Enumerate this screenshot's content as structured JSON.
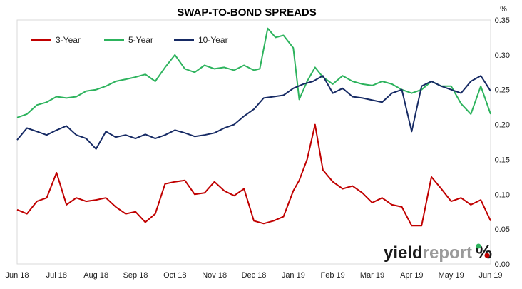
{
  "chart_data": {
    "type": "line",
    "title": "SWAP-TO-BOND SPREADS",
    "y_unit": "%",
    "ylim": [
      0,
      0.35
    ],
    "yticks": [
      "0.00",
      "0.05",
      "0.10",
      "0.15",
      "0.20",
      "0.25",
      "0.30",
      "0.35"
    ],
    "xlim": [
      0,
      12
    ],
    "x_tick_labels": [
      "Jun 18",
      "Jul 18",
      "Aug 18",
      "Sep 18",
      "Oct 18",
      "Nov 18",
      "Dec 18",
      "Jan 19",
      "Feb 19",
      "Mar 19",
      "Apr 19",
      "May 19",
      "Jun 19"
    ],
    "legend_position": "top-left",
    "grid": false,
    "series": [
      {
        "name": "3-Year",
        "color": "#c00000",
        "x": [
          0,
          0.25,
          0.5,
          0.75,
          1.0,
          1.25,
          1.5,
          1.75,
          2.0,
          2.25,
          2.5,
          2.75,
          3.0,
          3.25,
          3.5,
          3.75,
          4.0,
          4.25,
          4.5,
          4.75,
          5.0,
          5.25,
          5.5,
          5.75,
          6.0,
          6.25,
          6.5,
          6.75,
          7.0,
          7.15,
          7.35,
          7.55,
          7.75,
          8.0,
          8.25,
          8.5,
          8.75,
          9.0,
          9.25,
          9.5,
          9.75,
          10.0,
          10.25,
          10.5,
          10.75,
          11.0,
          11.25,
          11.5,
          11.75,
          12.0
        ],
        "values": [
          0.078,
          0.072,
          0.09,
          0.095,
          0.131,
          0.085,
          0.095,
          0.09,
          0.092,
          0.095,
          0.082,
          0.072,
          0.075,
          0.06,
          0.072,
          0.115,
          0.118,
          0.12,
          0.1,
          0.102,
          0.118,
          0.105,
          0.098,
          0.108,
          0.062,
          0.058,
          0.062,
          0.068,
          0.105,
          0.12,
          0.15,
          0.2,
          0.135,
          0.118,
          0.108,
          0.112,
          0.102,
          0.088,
          0.095,
          0.085,
          0.082,
          0.055,
          0.055,
          0.125,
          0.108,
          0.09,
          0.095,
          0.085,
          0.092,
          0.062
        ]
      },
      {
        "name": "5-Year",
        "color": "#2db35d",
        "x": [
          0,
          0.25,
          0.5,
          0.75,
          1.0,
          1.25,
          1.5,
          1.75,
          2.0,
          2.25,
          2.5,
          2.75,
          3.0,
          3.25,
          3.5,
          3.75,
          4.0,
          4.25,
          4.5,
          4.75,
          5.0,
          5.25,
          5.5,
          5.75,
          6.0,
          6.15,
          6.35,
          6.55,
          6.75,
          7.0,
          7.15,
          7.35,
          7.55,
          7.75,
          8.0,
          8.25,
          8.5,
          8.75,
          9.0,
          9.25,
          9.5,
          9.75,
          10.0,
          10.25,
          10.5,
          10.75,
          11.0,
          11.25,
          11.5,
          11.75,
          12.0
        ],
        "values": [
          0.21,
          0.215,
          0.228,
          0.232,
          0.24,
          0.238,
          0.24,
          0.248,
          0.25,
          0.255,
          0.262,
          0.265,
          0.268,
          0.272,
          0.262,
          0.282,
          0.3,
          0.28,
          0.275,
          0.285,
          0.28,
          0.282,
          0.278,
          0.285,
          0.278,
          0.28,
          0.338,
          0.325,
          0.328,
          0.31,
          0.236,
          0.262,
          0.282,
          0.268,
          0.258,
          0.27,
          0.262,
          0.258,
          0.256,
          0.262,
          0.258,
          0.25,
          0.245,
          0.25,
          0.262,
          0.255,
          0.255,
          0.23,
          0.215,
          0.255,
          0.215
        ]
      },
      {
        "name": "10-Year",
        "color": "#162a64",
        "x": [
          0,
          0.25,
          0.5,
          0.75,
          1.0,
          1.25,
          1.5,
          1.75,
          2.0,
          2.25,
          2.5,
          2.75,
          3.0,
          3.25,
          3.5,
          3.75,
          4.0,
          4.25,
          4.5,
          4.75,
          5.0,
          5.25,
          5.5,
          5.75,
          6.0,
          6.25,
          6.5,
          6.75,
          7.0,
          7.25,
          7.5,
          7.75,
          8.0,
          8.25,
          8.5,
          8.75,
          9.0,
          9.25,
          9.5,
          9.75,
          10.0,
          10.25,
          10.5,
          10.75,
          11.0,
          11.25,
          11.5,
          11.75,
          12.0
        ],
        "values": [
          0.178,
          0.195,
          0.19,
          0.185,
          0.192,
          0.198,
          0.185,
          0.18,
          0.165,
          0.19,
          0.182,
          0.185,
          0.18,
          0.186,
          0.18,
          0.185,
          0.192,
          0.188,
          0.183,
          0.185,
          0.188,
          0.195,
          0.2,
          0.212,
          0.222,
          0.238,
          0.24,
          0.242,
          0.252,
          0.258,
          0.262,
          0.27,
          0.245,
          0.252,
          0.24,
          0.238,
          0.235,
          0.232,
          0.245,
          0.25,
          0.19,
          0.255,
          0.262,
          0.255,
          0.25,
          0.245,
          0.262,
          0.27,
          0.248
        ]
      }
    ]
  },
  "branding": {
    "logo_part1": "yield",
    "logo_part2": "report",
    "logo_symbol": "%"
  }
}
